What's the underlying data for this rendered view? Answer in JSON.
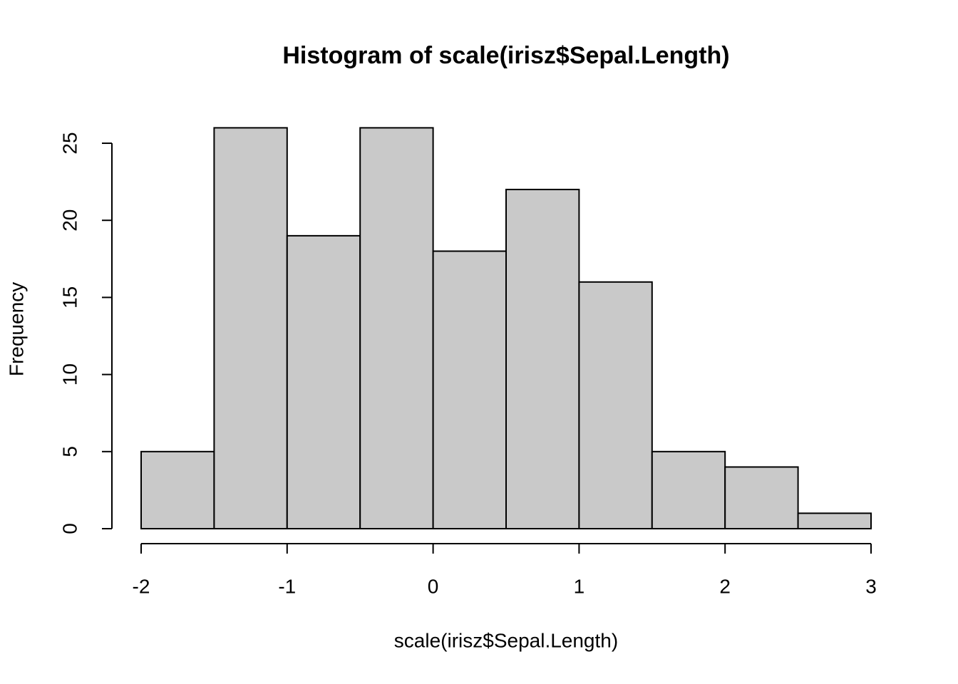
{
  "chart_data": {
    "type": "histogram",
    "title": "Histogram of scale(irisz$Sepal.Length)",
    "x_label": "scale(irisz$Sepal.Length)",
    "y_label": "Frequency",
    "bins": [
      -2,
      -1.5,
      -1,
      -0.5,
      0,
      0.5,
      1,
      1.5,
      2,
      2.5,
      3
    ],
    "values": [
      5,
      26,
      19,
      26,
      18,
      22,
      16,
      5,
      4,
      1
    ],
    "color": "#c9c9c9",
    "xlim": [
      -2,
      3
    ],
    "xticks": [
      -2,
      -1,
      0,
      1,
      2,
      3
    ],
    "ylim": [
      0,
      26
    ],
    "yticks": [
      0,
      5,
      10,
      15,
      20,
      25
    ]
  }
}
